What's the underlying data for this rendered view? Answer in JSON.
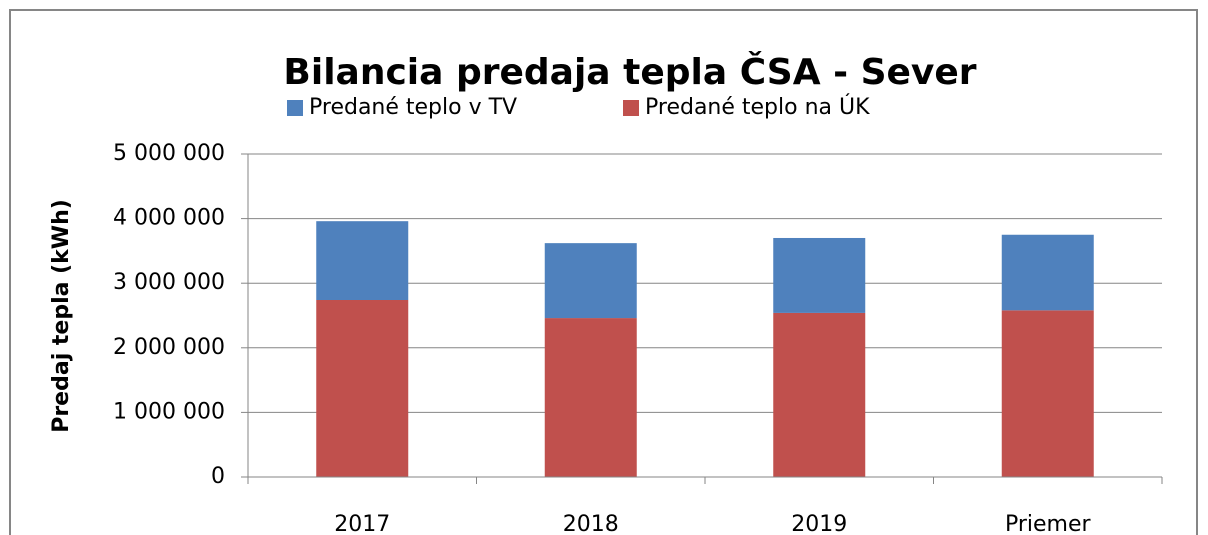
{
  "chart_data": {
    "type": "stacked_bar",
    "title": "Bilancia predaja tepla ČSA - Sever",
    "y_label": "Predaj tepla (kWh)",
    "categories": [
      "2017",
      "2018",
      "2019",
      "Priemer"
    ],
    "series": [
      {
        "name": "Predané teplo v TV",
        "color": "#4f81bd",
        "values": [
          1220000,
          1160000,
          1160000,
          1170000
        ]
      },
      {
        "name": "Predané teplo na ÚK",
        "color": "#c0504d",
        "values": [
          2740000,
          2460000,
          2540000,
          2580000
        ]
      }
    ],
    "ylim": [
      0,
      5000000
    ],
    "yticks": [
      0,
      {
        "value": 1000000,
        "label": "1 000 000"
      },
      {
        "value": 2000000,
        "label": "2 000 000"
      },
      {
        "value": 3000000,
        "label": "3 000 000"
      },
      {
        "value": 4000000,
        "label": "4 000 000"
      },
      {
        "value": 5000000,
        "label": "5 000 000"
      }
    ],
    "grid": true,
    "legend": "top"
  }
}
